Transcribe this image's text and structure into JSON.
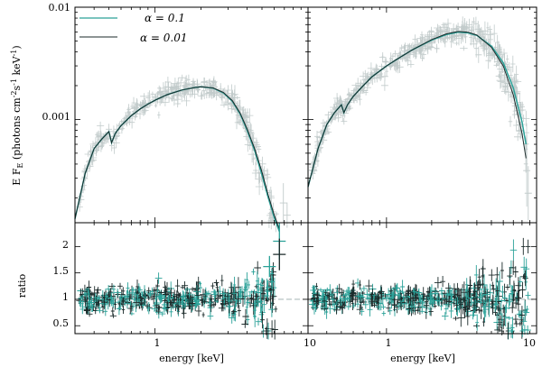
{
  "chart_data": [
    {
      "type": "line",
      "panel": "top-left",
      "xscale": "log",
      "yscale": "log",
      "xlim": [
        0.3,
        10
      ],
      "ylim": [
        0.00012,
        0.01
      ],
      "ylabel": "E F",
      "ylabel_sub": "E",
      "ylabel_units": " (photons cm",
      "ylabel_units2": "s",
      "ylabel_units3": "keV",
      "ylabel_sup1": "-2",
      "ylabel_sup2": "-1",
      "ylabel_sup3": "-1",
      "ylabel_end": ")",
      "yticks": [
        0.01,
        0.001
      ],
      "yticklabels": [
        "0.01",
        "0.001"
      ],
      "legend": [
        {
          "label": "α = 0.1",
          "color": "#2aa198"
        },
        {
          "label": "α = 0.01",
          "color": "#1b2a2a"
        }
      ],
      "series": [
        {
          "name": "alpha=0.1",
          "color": "#2aa198",
          "x": [
            0.3,
            0.35,
            0.4,
            0.45,
            0.5,
            0.52,
            0.55,
            0.6,
            0.7,
            0.8,
            0.9,
            1.0,
            1.2,
            1.5,
            1.8,
            2.0,
            2.4,
            2.8,
            3.2,
            3.6,
            4.0,
            4.5,
            5.0,
            5.5,
            6.0,
            6.5
          ],
          "y": [
            0.00013,
            0.00033,
            0.00055,
            0.00067,
            0.00078,
            0.00062,
            0.00075,
            0.00088,
            0.00108,
            0.00124,
            0.00137,
            0.00148,
            0.00166,
            0.00183,
            0.00192,
            0.00195,
            0.0019,
            0.00172,
            0.00145,
            0.00112,
            0.0008,
            0.00052,
            0.00032,
            0.0002,
            0.000135,
            0.0001
          ]
        },
        {
          "name": "alpha=0.01",
          "color": "#1b2a2a",
          "x": [
            0.3,
            0.35,
            0.4,
            0.45,
            0.5,
            0.52,
            0.55,
            0.6,
            0.7,
            0.8,
            0.9,
            1.0,
            1.2,
            1.5,
            1.8,
            2.0,
            2.4,
            2.8,
            3.2,
            3.6,
            4.0,
            4.5,
            5.0,
            5.5,
            6.0,
            6.5
          ],
          "y": [
            0.00013,
            0.00033,
            0.00055,
            0.00067,
            0.00078,
            0.00062,
            0.00075,
            0.00088,
            0.00108,
            0.00124,
            0.00137,
            0.00148,
            0.00166,
            0.00183,
            0.00192,
            0.00195,
            0.00191,
            0.00174,
            0.00147,
            0.00114,
            0.00082,
            0.00054,
            0.00034,
            0.00021,
            0.000142,
            0.000105
          ]
        }
      ]
    },
    {
      "type": "line",
      "panel": "top-right",
      "xscale": "log",
      "yscale": "log",
      "xlim": [
        0.3,
        10
      ],
      "ylim": [
        0.00012,
        0.01
      ],
      "series": [
        {
          "name": "alpha=0.1",
          "color": "#2aa198",
          "x": [
            0.3,
            0.35,
            0.4,
            0.45,
            0.5,
            0.52,
            0.55,
            0.6,
            0.7,
            0.8,
            1.0,
            1.2,
            1.5,
            2.0,
            2.5,
            3.0,
            3.5,
            4.0,
            5.0,
            6.0,
            7.0,
            8.0,
            8.5
          ],
          "y": [
            0.00025,
            0.00055,
            0.0009,
            0.00115,
            0.00135,
            0.00115,
            0.00135,
            0.0016,
            0.002,
            0.0024,
            0.003,
            0.0035,
            0.0042,
            0.0051,
            0.0057,
            0.006,
            0.0059,
            0.0056,
            0.0045,
            0.0032,
            0.0019,
            0.00095,
            0.0006
          ]
        },
        {
          "name": "alpha=0.01",
          "color": "#1b2a2a",
          "x": [
            0.3,
            0.35,
            0.4,
            0.45,
            0.5,
            0.52,
            0.55,
            0.6,
            0.7,
            0.8,
            1.0,
            1.2,
            1.5,
            2.0,
            2.5,
            3.0,
            3.5,
            4.0,
            5.0,
            6.0,
            7.0,
            8.0,
            8.5
          ],
          "y": [
            0.00025,
            0.00055,
            0.0009,
            0.00115,
            0.00135,
            0.00115,
            0.00135,
            0.0016,
            0.002,
            0.0024,
            0.003,
            0.0035,
            0.0042,
            0.00515,
            0.00578,
            0.00608,
            0.00598,
            0.00565,
            0.0044,
            0.003,
            0.00165,
            0.00075,
            0.00045
          ]
        }
      ]
    },
    {
      "type": "scatter",
      "panel": "bottom-left",
      "xscale": "log",
      "xlim": [
        0.3,
        10
      ],
      "ylim": [
        0.35,
        2.45
      ],
      "ylabel": "ratio",
      "xlabel": "energy [keV]",
      "xticks": [
        1,
        10
      ],
      "xticklabels": [
        "1",
        "10"
      ],
      "yticks": [
        0.5,
        1,
        1.5,
        2
      ],
      "yticklabels": [
        "0.5",
        "1",
        "1.5",
        "2"
      ],
      "reference_line": 1.0,
      "highlighted_points": [
        {
          "x": 6.5,
          "y": 2.1,
          "yerr": 0.35,
          "color": "#2aa198"
        },
        {
          "x": 6.5,
          "y": 1.85,
          "yerr": 0.3,
          "color": "#1b2a2a"
        },
        {
          "x": 5.6,
          "y": 1.62,
          "yerr": 0.2,
          "color": "#2aa198"
        }
      ]
    },
    {
      "type": "scatter",
      "panel": "bottom-right",
      "xscale": "log",
      "xlim": [
        0.3,
        10
      ],
      "ylim": [
        0.35,
        2.45
      ],
      "xlabel": "energy [keV]",
      "xticks": [
        1,
        10
      ],
      "xticklabels": [
        "1",
        "10"
      ],
      "reference_line": 1.0
    }
  ]
}
